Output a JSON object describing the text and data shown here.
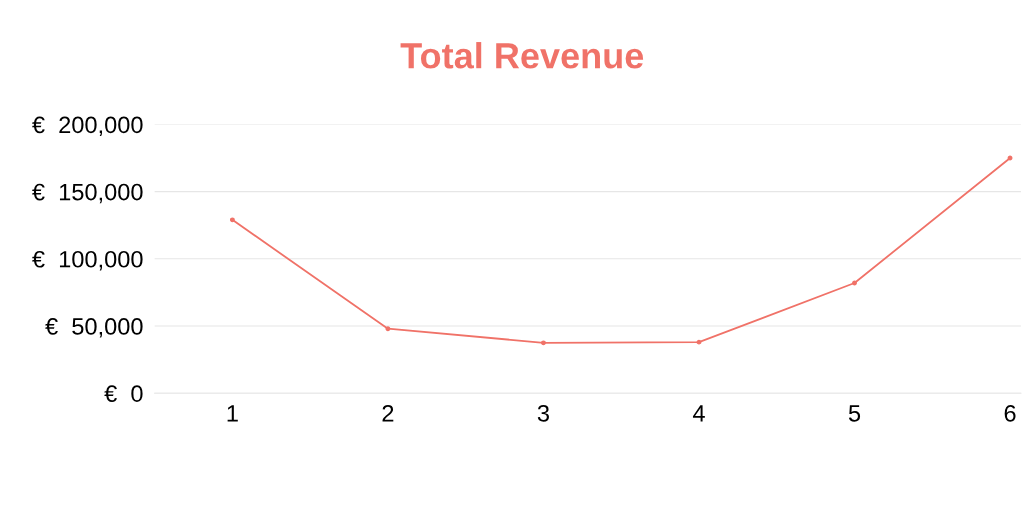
{
  "chart_data": {
    "type": "line",
    "title": "Total Revenue",
    "categories": [
      "1",
      "2",
      "3",
      "4",
      "5",
      "6"
    ],
    "series": [
      {
        "color": "#f07268",
        "values": [
          129000,
          48000,
          37500,
          38000,
          82000,
          175000
        ]
      }
    ],
    "ylim": [
      0,
      200000
    ],
    "yticks": [
      {
        "value": 0,
        "label": "€  0"
      },
      {
        "value": 50000,
        "label": "€  50,000"
      },
      {
        "value": 100000,
        "label": "€  100,000"
      },
      {
        "value": 150000,
        "label": "€  150,000"
      },
      {
        "value": 200000,
        "label": "€  200,000"
      }
    ],
    "grid": "y",
    "marker": "circle",
    "line_style": "solid",
    "legend": false
  }
}
